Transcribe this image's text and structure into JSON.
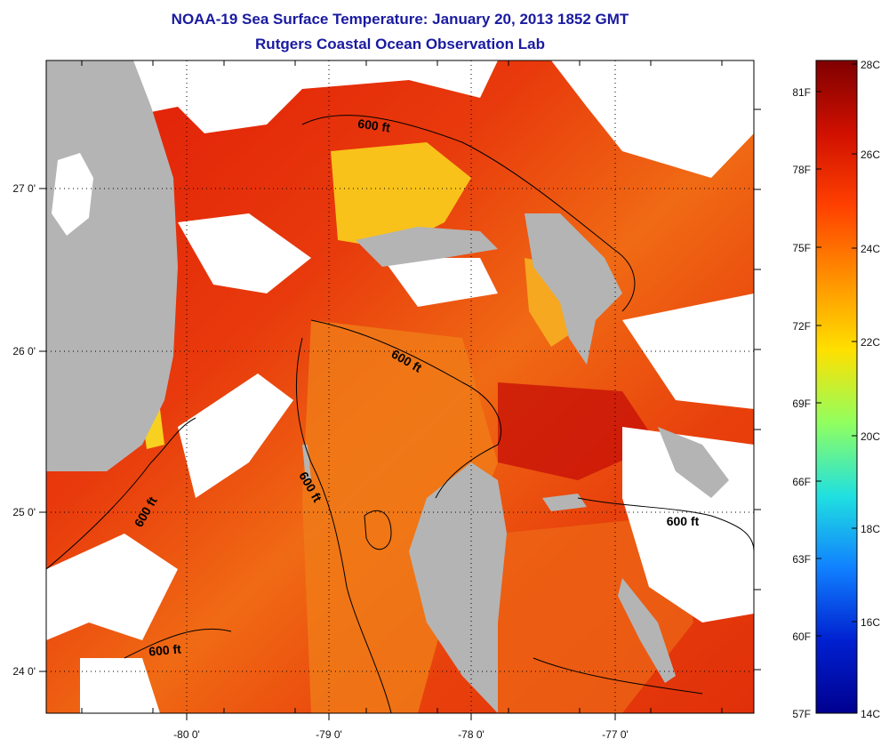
{
  "header": {
    "title": "NOAA-19 Sea Surface Temperature:  January 20, 2013 1852 GMT",
    "subtitle": "Rutgers Coastal Ocean Observation Lab"
  },
  "map": {
    "lon_ticks": [
      "-80 0'",
      "-79 0'",
      "-78 0'",
      "-77 0'"
    ],
    "lat_ticks": [
      "27 0'",
      "26 0'",
      "25 0'",
      "24 0'"
    ],
    "contour_labels": [
      "600 ft",
      "600 ft",
      "600 ft",
      "600 ft",
      "600 ft",
      "600 ft"
    ],
    "colors": {
      "land": "#b4b4b4",
      "no_data": "#ffffff",
      "sst_dominant": "#e8300c"
    }
  },
  "colorbar": {
    "fahrenheit_labels": [
      "81F",
      "78F",
      "75F",
      "72F",
      "69F",
      "66F",
      "63F",
      "60F",
      "57F"
    ],
    "celsius_labels": [
      "28C",
      "26C",
      "24C",
      "22C",
      "20C",
      "18C",
      "16C",
      "14C"
    ],
    "colors": [
      "#7f0000",
      "#d01000",
      "#ff4000",
      "#ff9000",
      "#ffe000",
      "#90ff60",
      "#20e0e0",
      "#1080ff",
      "#0020d0",
      "#00008f"
    ]
  }
}
